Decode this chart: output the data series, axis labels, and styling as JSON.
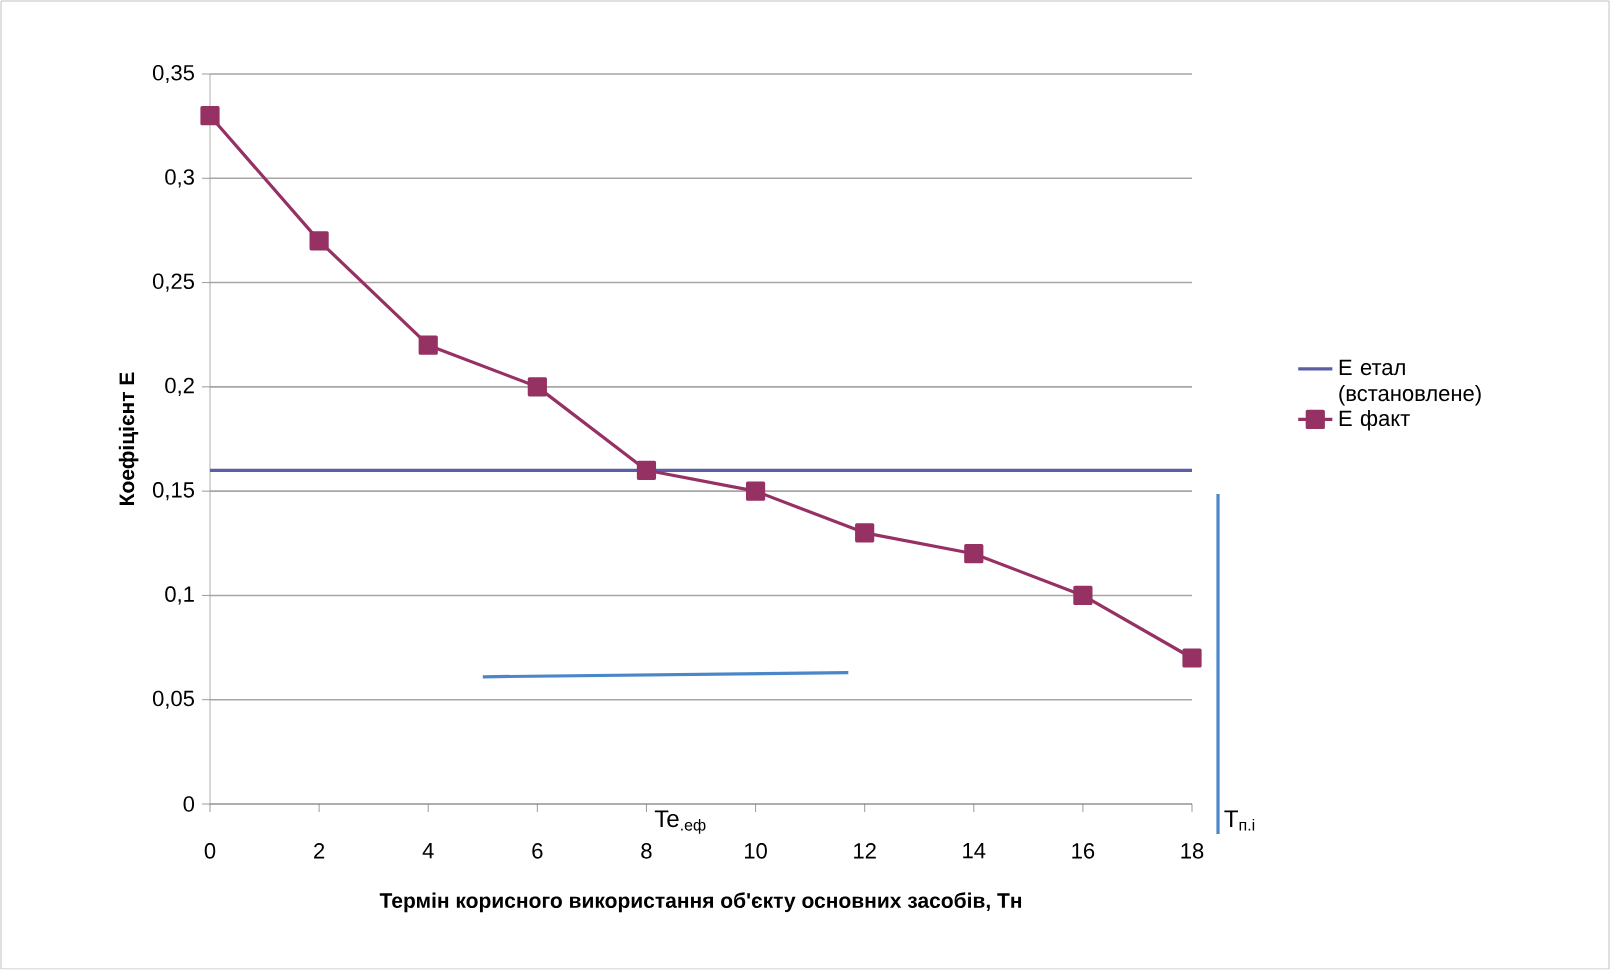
{
  "chart_data": {
    "type": "line",
    "xlabel": "Термін корисного використання об'єкту основних засобів, Тн",
    "ylabel": "Коефіцієнт  Е",
    "xlim": [
      0,
      18
    ],
    "xticks": [
      0,
      2,
      4,
      6,
      8,
      10,
      12,
      14,
      16,
      18
    ],
    "ylim": [
      0,
      0.35
    ],
    "yticks": [
      0,
      {
        "value": 0.05,
        "label": "0,05"
      },
      {
        "value": 0.1,
        "label": "0,1"
      },
      {
        "value": 0.15,
        "label": "0,15"
      },
      {
        "value": 0.2,
        "label": "0,2"
      },
      {
        "value": 0.25,
        "label": "0,25"
      },
      {
        "value": 0.3,
        "label": "0,3"
      },
      {
        "value": 0.35,
        "label": "0,35"
      }
    ],
    "grid": "y",
    "legend": "right",
    "series": [
      {
        "name": "Е етал (встановлене)",
        "color": "#5b5ea6",
        "marker": "none",
        "x": [
          0,
          18
        ],
        "values": [
          0.16,
          0.16
        ]
      },
      {
        "name": "Е факт",
        "color": "#953163",
        "marker": "square",
        "x": [
          0,
          2,
          4,
          6,
          8,
          10,
          12,
          14,
          16,
          18
        ],
        "values": [
          0.33,
          0.27,
          0.22,
          0.2,
          0.16,
          0.15,
          0.13,
          0.12,
          0.1,
          0.07
        ]
      },
      {
        "color": "#4a86c8",
        "marker": "none",
        "x": [
          5,
          11.7
        ],
        "values": [
          0.061,
          0.063
        ]
      }
    ],
    "annotations": [
      "Te$_{.еф}$",
      "T$_{п.і}$"
    ]
  }
}
